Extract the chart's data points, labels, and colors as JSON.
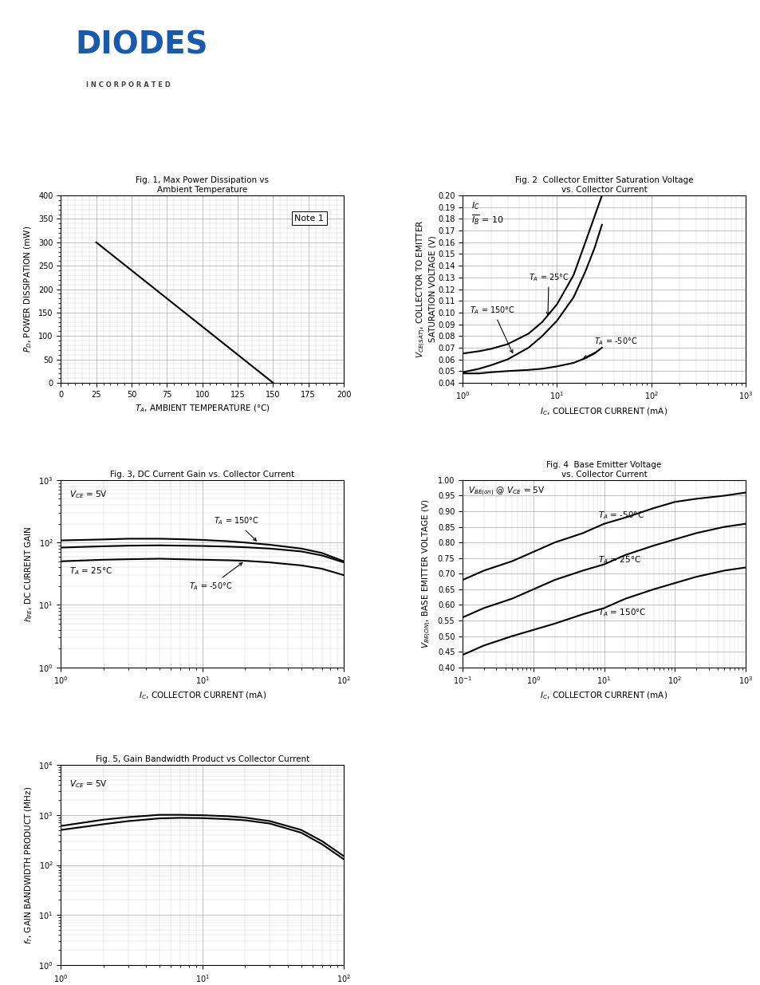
{
  "logo": {
    "text": "DIODES",
    "subtext": "I N C O R P O R A T E D",
    "color": "#1a5aad"
  },
  "fig1": {
    "title": "Fig. 1, Max Power Dissipation vs\nAmbient Temperature",
    "xlabel": "TA, AMBIENT TEMPERATURE (C)",
    "ylabel": "PD, POWER DISSIPATION (mW)",
    "xlim": [
      0,
      200
    ],
    "ylim": [
      0,
      400
    ],
    "xticks": [
      0,
      25,
      50,
      75,
      100,
      125,
      150,
      175,
      200
    ],
    "yticks": [
      0,
      50,
      100,
      150,
      200,
      250,
      300,
      350,
      400
    ],
    "line_x": [
      25,
      150
    ],
    "line_y": [
      300,
      0
    ],
    "note": "Note 1"
  },
  "fig2": {
    "title": "Fig. 2  Collector Emitter Saturation Voltage\nvs. Collector Current",
    "xlabel": "IC, COLLECTOR CURRENT (mA)",
    "ylabel": "VCE(SAT), COLLECTOR TO EMITTER\nSATURATION VOLTAGE (V)",
    "xlim_log": [
      1,
      1000
    ],
    "ylim": [
      0.04,
      0.2
    ],
    "yticks": [
      0.04,
      0.05,
      0.06,
      0.07,
      0.08,
      0.09,
      0.1,
      0.11,
      0.12,
      0.13,
      0.14,
      0.15,
      0.16,
      0.17,
      0.18,
      0.19,
      0.2
    ],
    "T25_x": [
      1,
      1.5,
      2,
      3,
      5,
      7,
      10,
      15,
      20,
      25,
      30
    ],
    "T25_y": [
      0.065,
      0.067,
      0.069,
      0.073,
      0.082,
      0.092,
      0.107,
      0.132,
      0.16,
      0.182,
      0.2
    ],
    "T150_x": [
      1,
      1.5,
      2,
      3,
      5,
      7,
      10,
      15,
      20,
      25,
      30
    ],
    "T150_y": [
      0.049,
      0.052,
      0.055,
      0.06,
      0.07,
      0.08,
      0.093,
      0.113,
      0.135,
      0.155,
      0.175
    ],
    "Tm50_x": [
      1,
      1.5,
      2,
      3,
      5,
      7,
      10,
      15,
      20,
      25,
      30
    ],
    "Tm50_y": [
      0.048,
      0.048,
      0.049,
      0.05,
      0.051,
      0.052,
      0.054,
      0.057,
      0.061,
      0.065,
      0.07
    ]
  },
  "fig3": {
    "title": "Fig. 3, DC Current Gain vs. Collector Current",
    "xlabel": "IC, COLLECTOR CURRENT (mA)",
    "ylabel": "hFE, DC CURRENT GAIN",
    "xlim_log": [
      1,
      100
    ],
    "ylim_log": [
      1,
      1000
    ],
    "T150_x": [
      1,
      2,
      3,
      5,
      7,
      10,
      15,
      20,
      30,
      50,
      70,
      100
    ],
    "T150_y": [
      108,
      112,
      115,
      115,
      113,
      110,
      105,
      100,
      92,
      80,
      68,
      50
    ],
    "T25_x": [
      1,
      2,
      3,
      5,
      7,
      10,
      15,
      20,
      30,
      50,
      70,
      100
    ],
    "T25_y": [
      83,
      87,
      89,
      90,
      89,
      88,
      86,
      84,
      80,
      72,
      62,
      48
    ],
    "Tm50_x": [
      1,
      2,
      3,
      5,
      7,
      10,
      15,
      20,
      30,
      50,
      70,
      100
    ],
    "Tm50_y": [
      50,
      53,
      54,
      55,
      54,
      53,
      52,
      51,
      48,
      43,
      38,
      30
    ]
  },
  "fig4": {
    "title": "Fig. 4  Base Emitter Voltage\nvs. Collector Current",
    "xlabel": "IC, COLLECTOR CURRENT (mA)",
    "ylabel": "VBE(ON), BASE EMITTER VOLTAGE (V)",
    "xlim_log": [
      0.1,
      1000
    ],
    "ylim": [
      0.4,
      1.0
    ],
    "yticks": [
      0.4,
      0.45,
      0.5,
      0.55,
      0.6,
      0.65,
      0.7,
      0.75,
      0.8,
      0.85,
      0.9,
      0.95,
      1.0
    ],
    "Tm50_x": [
      0.1,
      0.2,
      0.5,
      1,
      2,
      5,
      10,
      20,
      50,
      100,
      200,
      500,
      1000
    ],
    "Tm50_y": [
      0.68,
      0.71,
      0.74,
      0.77,
      0.8,
      0.83,
      0.86,
      0.88,
      0.91,
      0.93,
      0.94,
      0.95,
      0.96
    ],
    "T25_x": [
      0.1,
      0.2,
      0.5,
      1,
      2,
      5,
      10,
      20,
      50,
      100,
      200,
      500,
      1000
    ],
    "T25_y": [
      0.56,
      0.59,
      0.62,
      0.65,
      0.68,
      0.71,
      0.73,
      0.76,
      0.79,
      0.81,
      0.83,
      0.85,
      0.86
    ],
    "T150_x": [
      0.1,
      0.2,
      0.5,
      1,
      2,
      5,
      10,
      20,
      50,
      100,
      200,
      500,
      1000
    ],
    "T150_y": [
      0.44,
      0.47,
      0.5,
      0.52,
      0.54,
      0.57,
      0.59,
      0.62,
      0.65,
      0.67,
      0.69,
      0.71,
      0.72
    ]
  },
  "fig5": {
    "title": "Fig. 5, Gain Bandwidth Product vs Collector Current",
    "xlabel": "IC, COLLECTOR CURRENT (mA)",
    "ylabel": "fT, GAIN BANDWIDTH PRODUCT (MHz)",
    "xlim_log": [
      1,
      100
    ],
    "ylim_log": [
      1,
      10000
    ],
    "upper_x": [
      1,
      2,
      3,
      5,
      7,
      10,
      15,
      20,
      30,
      50,
      70,
      100
    ],
    "upper_y": [
      600,
      800,
      900,
      1000,
      1000,
      980,
      940,
      880,
      750,
      500,
      300,
      150
    ],
    "lower_x": [
      1,
      2,
      3,
      5,
      7,
      10,
      15,
      20,
      30,
      50,
      70,
      100
    ],
    "lower_y": [
      500,
      650,
      750,
      850,
      870,
      860,
      820,
      780,
      670,
      440,
      260,
      130
    ]
  }
}
